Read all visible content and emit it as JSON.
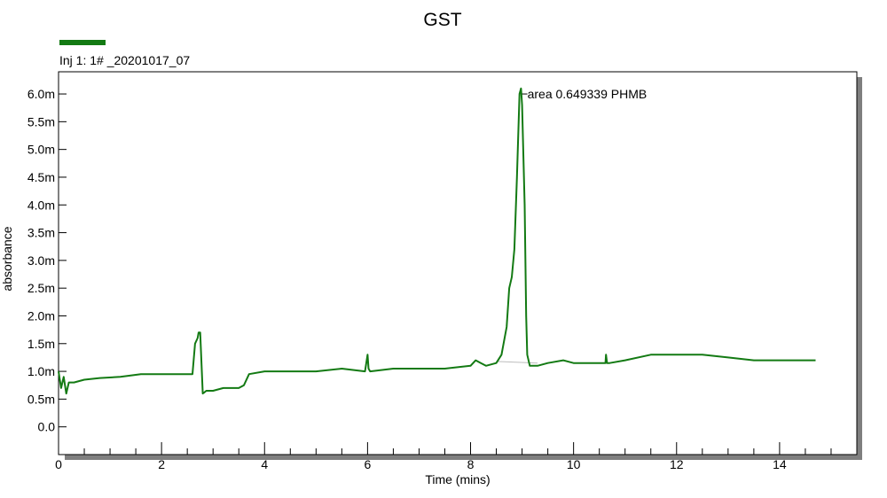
{
  "chart_data": {
    "type": "line",
    "title": "GST",
    "xlabel": "Time (mins)",
    "ylabel": "absorbance",
    "xlim": [
      0,
      15.5
    ],
    "ylim": [
      -0.0005,
      0.0064
    ],
    "x_ticks": [
      0,
      2,
      4,
      6,
      8,
      10,
      12,
      14
    ],
    "x_tick_labels": [
      "0",
      "2",
      "4",
      "6",
      "8",
      "10",
      "12",
      "14"
    ],
    "y_ticks": [
      0.0,
      0.0005,
      0.001,
      0.0015,
      0.002,
      0.0025,
      0.003,
      0.0035,
      0.004,
      0.0045,
      0.005,
      0.0055,
      0.006
    ],
    "y_tick_labels": [
      "0.0",
      "0.5m",
      "1.0m",
      "1.5m",
      "2.0m",
      "2.5m",
      "3.0m",
      "3.5m",
      "4.0m",
      "4.5m",
      "5.0m",
      "5.5m",
      "6.0m"
    ],
    "grid": false,
    "legend_position": "top-left",
    "series": [
      {
        "name": "Inj 1: 1# _20201017_07",
        "color": "#137a13",
        "x": [
          0.0,
          0.05,
          0.1,
          0.15,
          0.2,
          0.3,
          0.5,
          0.8,
          1.2,
          1.6,
          2.0,
          2.3,
          2.6,
          2.65,
          2.7,
          2.72,
          2.75,
          2.8,
          2.83,
          2.87,
          3.0,
          3.2,
          3.5,
          3.6,
          3.7,
          4.0,
          4.5,
          5.0,
          5.5,
          5.95,
          6.0,
          6.02,
          6.05,
          6.5,
          7.0,
          7.5,
          8.0,
          8.1,
          8.2,
          8.3,
          8.5,
          8.6,
          8.7,
          8.75,
          8.8,
          8.85,
          8.9,
          8.95,
          8.98,
          9.0,
          9.05,
          9.08,
          9.1,
          9.15,
          9.3,
          9.5,
          9.8,
          10.0,
          10.5,
          10.62,
          10.63,
          10.65,
          10.7,
          11.0,
          11.5,
          12.0,
          12.5,
          13.0,
          13.5,
          14.0,
          14.7
        ],
        "y": [
          0.001,
          0.0007,
          0.0009,
          0.0006,
          0.0008,
          0.0008,
          0.00085,
          0.00088,
          0.0009,
          0.00095,
          0.00095,
          0.00095,
          0.00095,
          0.0015,
          0.0016,
          0.0017,
          0.0017,
          0.0006,
          0.00062,
          0.00065,
          0.00065,
          0.0007,
          0.0007,
          0.00075,
          0.00095,
          0.001,
          0.001,
          0.001,
          0.00105,
          0.001,
          0.0013,
          0.00105,
          0.001,
          0.00105,
          0.00105,
          0.00105,
          0.0011,
          0.0012,
          0.00115,
          0.0011,
          0.00115,
          0.0013,
          0.0018,
          0.0025,
          0.0027,
          0.0032,
          0.0045,
          0.006,
          0.0061,
          0.0058,
          0.004,
          0.002,
          0.0013,
          0.0011,
          0.0011,
          0.00115,
          0.0012,
          0.00115,
          0.00115,
          0.00115,
          0.0013,
          0.00115,
          0.00115,
          0.0012,
          0.0013,
          0.0013,
          0.0013,
          0.00125,
          0.0012,
          0.0012,
          0.0012
        ]
      }
    ],
    "baseline": {
      "x": [
        8.5,
        9.3
      ],
      "y": [
        0.00118,
        0.00115
      ],
      "color": "#bdbdbd"
    },
    "annotations": [
      {
        "text": "area 0.649339 PHMB",
        "x": 9.0,
        "y": 0.006
      }
    ]
  },
  "colors": {
    "plot_border": "#000000",
    "shadow": "#7f7f7f",
    "series": "#137a13"
  }
}
